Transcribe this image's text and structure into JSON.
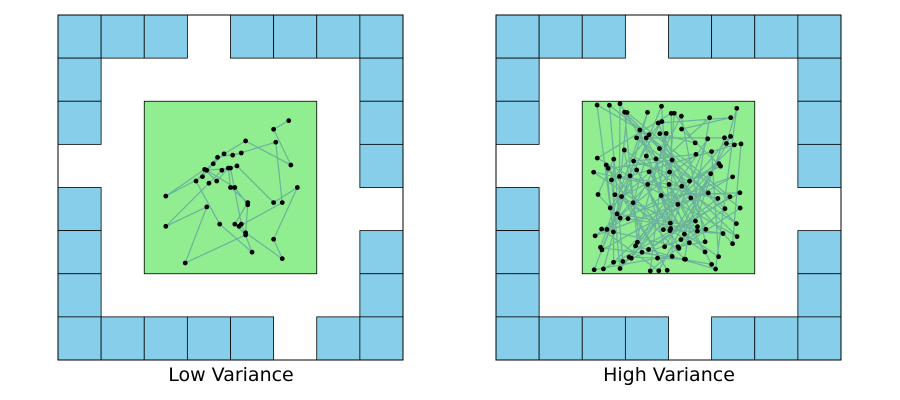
{
  "colors": {
    "tile": "#87ceeb",
    "floor": "#ffffff",
    "target": "#90ee90",
    "path": "#5f9ea0",
    "point": "#000000",
    "border": "#000000"
  },
  "panels": [
    {
      "caption": "Low Variance",
      "grid_size": 8,
      "tiles": [
        [
          0,
          0
        ],
        [
          1,
          0
        ],
        [
          2,
          0
        ],
        [
          4,
          0
        ],
        [
          5,
          0
        ],
        [
          6,
          0
        ],
        [
          7,
          0
        ],
        [
          0,
          1
        ],
        [
          7,
          1
        ],
        [
          0,
          2
        ],
        [
          7,
          2
        ],
        [
          7,
          3
        ],
        [
          0,
          4
        ],
        [
          0,
          5
        ],
        [
          7,
          5
        ],
        [
          0,
          6
        ],
        [
          7,
          6
        ],
        [
          0,
          7
        ],
        [
          1,
          7
        ],
        [
          2,
          7
        ],
        [
          3,
          7
        ],
        [
          4,
          7
        ],
        [
          6,
          7
        ],
        [
          7,
          7
        ]
      ],
      "target_cells": {
        "from": [
          2,
          2
        ],
        "to": [
          6,
          6
        ]
      },
      "trajectory": [
        [
          5.35,
          2.45
        ],
        [
          5.0,
          2.65
        ],
        [
          5.4,
          3.48
        ],
        [
          4.35,
          2.92
        ],
        [
          3.85,
          3.22
        ],
        [
          3.6,
          3.45
        ],
        [
          3.35,
          3.75
        ],
        [
          2.5,
          4.2
        ],
        [
          3.4,
          3.58
        ],
        [
          3.68,
          3.85
        ],
        [
          3.95,
          3.55
        ],
        [
          4.0,
          4.0
        ],
        [
          4.4,
          4.35
        ],
        [
          4.1,
          4.85
        ],
        [
          4.35,
          5.1
        ],
        [
          2.95,
          5.75
        ],
        [
          3.45,
          4.45
        ],
        [
          2.5,
          4.9
        ],
        [
          3.5,
          3.9
        ],
        [
          3.8,
          3.6
        ],
        [
          4.15,
          3.5
        ],
        [
          5.0,
          4.35
        ],
        [
          5.55,
          4.0
        ],
        [
          5.0,
          5.2
        ],
        [
          5.2,
          5.65
        ],
        [
          4.35,
          5.05
        ],
        [
          4.4,
          4.4
        ],
        [
          4.1,
          4.0
        ],
        [
          3.45,
          3.6
        ],
        [
          4.0,
          3.55
        ],
        [
          4.25,
          4.85
        ],
        [
          4.5,
          5.5
        ],
        [
          3.75,
          4.85
        ],
        [
          3.2,
          3.85
        ],
        [
          3.7,
          3.3
        ],
        [
          4.25,
          3.2
        ],
        [
          4.05,
          3.25
        ],
        [
          5.05,
          2.95
        ],
        [
          5.2,
          4.35
        ],
        [
          4.2,
          4.9
        ]
      ]
    },
    {
      "caption": "High Variance",
      "grid_size": 8,
      "tiles": [
        [
          0,
          0
        ],
        [
          1,
          0
        ],
        [
          2,
          0
        ],
        [
          4,
          0
        ],
        [
          5,
          0
        ],
        [
          6,
          0
        ],
        [
          7,
          0
        ],
        [
          0,
          1
        ],
        [
          7,
          1
        ],
        [
          0,
          2
        ],
        [
          7,
          2
        ],
        [
          7,
          3
        ],
        [
          0,
          4
        ],
        [
          0,
          5
        ],
        [
          7,
          5
        ],
        [
          0,
          6
        ],
        [
          7,
          6
        ],
        [
          0,
          7
        ],
        [
          1,
          7
        ],
        [
          2,
          7
        ],
        [
          3,
          7
        ],
        [
          5,
          7
        ],
        [
          6,
          7
        ],
        [
          7,
          7
        ]
      ],
      "target_cells": {
        "from": [
          2,
          2
        ],
        "to": [
          6,
          6
        ]
      },
      "seed": 7,
      "point_count": 120
    }
  ]
}
